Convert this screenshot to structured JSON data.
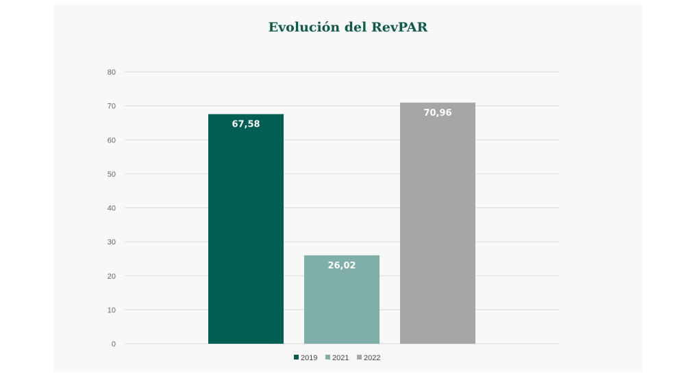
{
  "chart_data": {
    "type": "bar",
    "title": "Evolución del RevPAR",
    "categories": [
      "2019",
      "2021",
      "2022"
    ],
    "values": [
      67.58,
      26.02,
      70.96
    ],
    "value_labels": [
      "67,58",
      "26,02",
      "70,96"
    ],
    "colors": [
      "#005e52",
      "#80aea8",
      "#a6a6a6"
    ],
    "ylim": [
      0,
      80
    ],
    "yticks": [
      0,
      10,
      20,
      30,
      40,
      50,
      60,
      70,
      80
    ],
    "grid": true,
    "legend": {
      "placement": "bottom",
      "entries": [
        "2019",
        "2021",
        "2022"
      ]
    },
    "colors_misc": {
      "gridline": "#d9d9d9",
      "title": "#0e5a4c",
      "background": "#f8f8f8"
    }
  }
}
